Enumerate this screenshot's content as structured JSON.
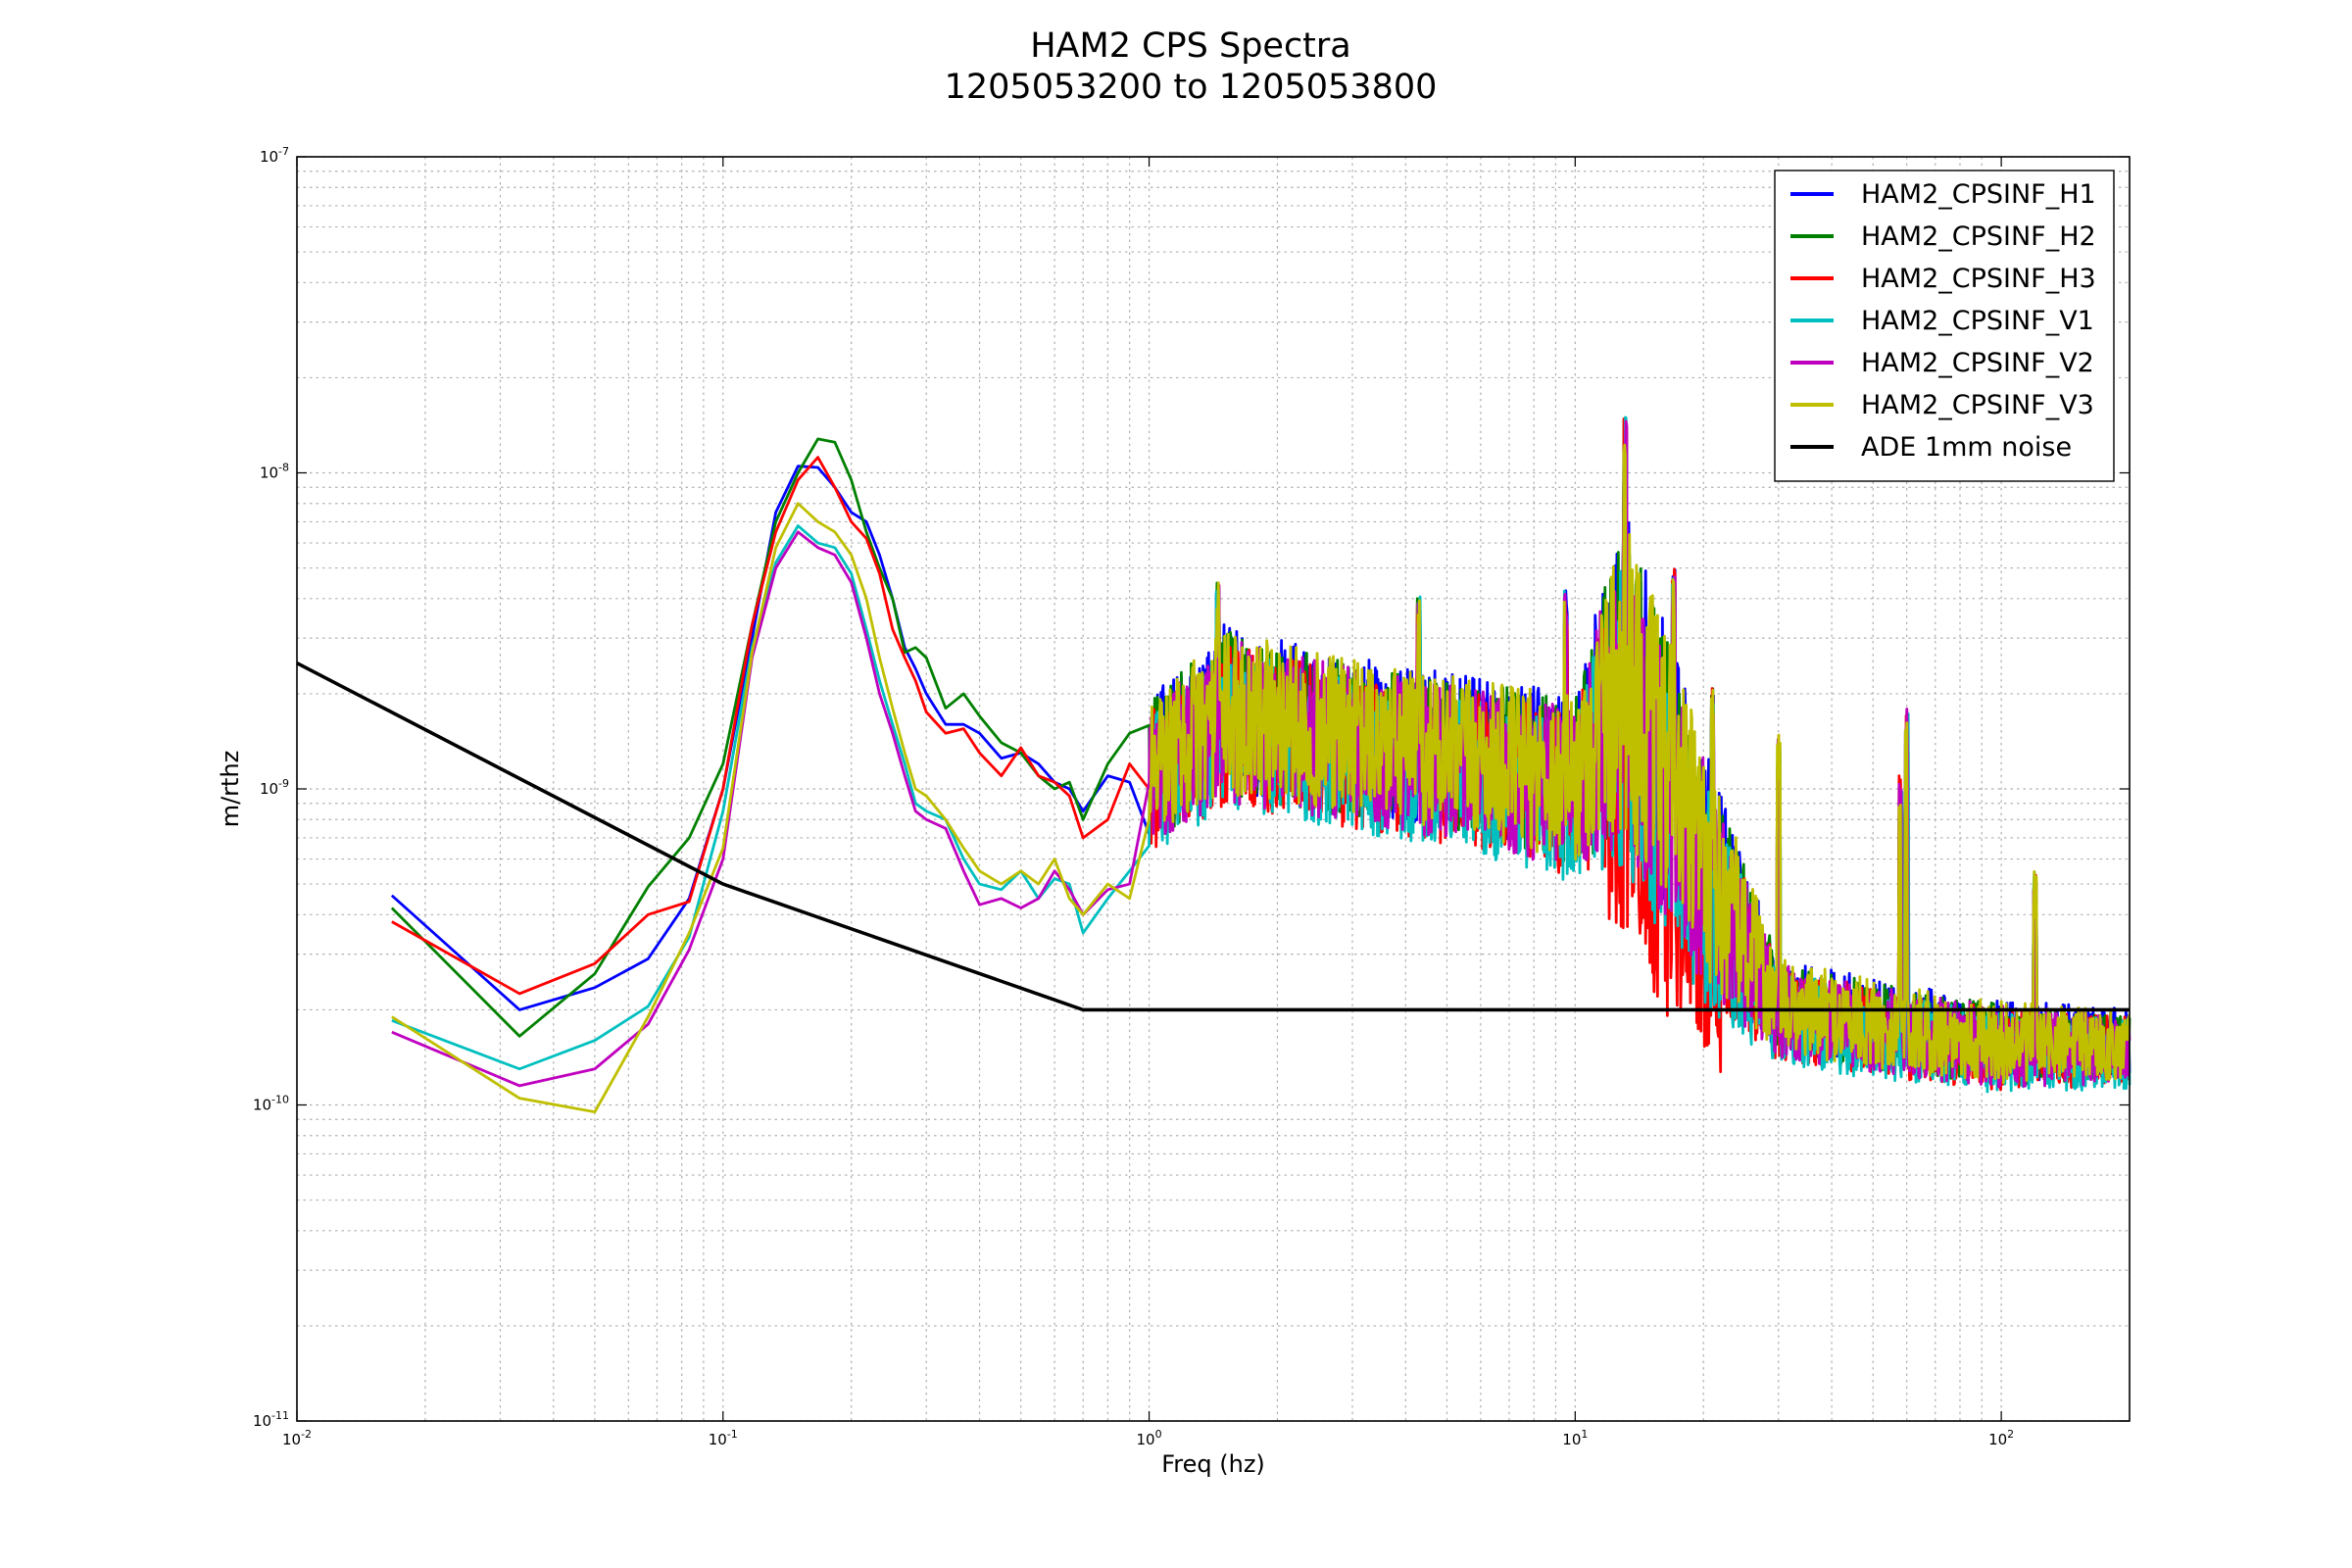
{
  "chart_data": {
    "type": "line",
    "title": "HAM2 CPS Spectra",
    "subtitle": "1205053200 to 1205053800",
    "xlabel": "Freq (hz)",
    "ylabel": "m/rthz",
    "xscale": "log",
    "yscale": "log",
    "xlim": [
      0.01,
      200
    ],
    "ylim": [
      1e-11,
      1e-07
    ],
    "grid": true,
    "legend_position": "top-right",
    "x_ticks": [
      {
        "base": "10",
        "exp": "-2",
        "value": 0.01
      },
      {
        "base": "10",
        "exp": "-1",
        "value": 0.1
      },
      {
        "base": "10",
        "exp": "0",
        "value": 1
      },
      {
        "base": "10",
        "exp": "1",
        "value": 10
      },
      {
        "base": "10",
        "exp": "2",
        "value": 100
      }
    ],
    "y_ticks": [
      {
        "base": "10",
        "exp": "-11",
        "value": 1e-11
      },
      {
        "base": "10",
        "exp": "-10",
        "value": 1e-10
      },
      {
        "base": "10",
        "exp": "-9",
        "value": 1e-09
      },
      {
        "base": "10",
        "exp": "-8",
        "value": 1e-08
      },
      {
        "base": "10",
        "exp": "-7",
        "value": 1e-07
      }
    ],
    "series": [
      {
        "name": "HAM2_CPSINF_H1",
        "color": "#0000ff",
        "points": [
          [
            0.0167,
            4.6e-10
          ],
          [
            0.0333,
            2e-10
          ],
          [
            0.05,
            2.35e-10
          ],
          [
            0.0667,
            2.9e-10
          ],
          [
            0.0833,
            4.5e-10
          ],
          [
            0.1,
            1e-09
          ],
          [
            0.117,
            3e-09
          ],
          [
            0.133,
            7.5e-09
          ],
          [
            0.15,
            1.05e-08
          ],
          [
            0.167,
            1.04e-08
          ],
          [
            0.183,
            9e-09
          ],
          [
            0.2,
            7.5e-09
          ],
          [
            0.217,
            7e-09
          ],
          [
            0.233,
            5.5e-09
          ],
          [
            0.25,
            4e-09
          ],
          [
            0.267,
            2.8e-09
          ],
          [
            0.283,
            2.4e-09
          ],
          [
            0.3,
            2e-09
          ],
          [
            0.333,
            1.6e-09
          ],
          [
            0.367,
            1.6e-09
          ],
          [
            0.4,
            1.5e-09
          ],
          [
            0.45,
            1.25e-09
          ],
          [
            0.5,
            1.3e-09
          ],
          [
            0.55,
            1.2e-09
          ],
          [
            0.6,
            1.05e-09
          ],
          [
            0.65,
            1e-09
          ],
          [
            0.7,
            8.5e-10
          ],
          [
            0.8,
            1.1e-09
          ],
          [
            0.9,
            1.05e-09
          ]
        ]
      },
      {
        "name": "HAM2_CPSINF_H2",
        "color": "#008000",
        "points": [
          [
            0.0167,
            4.2e-10
          ],
          [
            0.0333,
            1.65e-10
          ],
          [
            0.05,
            2.6e-10
          ],
          [
            0.0667,
            4.9e-10
          ],
          [
            0.0833,
            7e-10
          ],
          [
            0.1,
            1.2e-09
          ],
          [
            0.117,
            3.3e-09
          ],
          [
            0.133,
            7e-09
          ],
          [
            0.15,
            1e-08
          ],
          [
            0.167,
            1.28e-08
          ],
          [
            0.183,
            1.25e-08
          ],
          [
            0.2,
            9.5e-09
          ],
          [
            0.217,
            6.5e-09
          ],
          [
            0.233,
            5e-09
          ],
          [
            0.25,
            4e-09
          ],
          [
            0.267,
            2.7e-09
          ],
          [
            0.283,
            2.8e-09
          ],
          [
            0.3,
            2.6e-09
          ],
          [
            0.333,
            1.8e-09
          ],
          [
            0.367,
            2e-09
          ],
          [
            0.4,
            1.7e-09
          ],
          [
            0.45,
            1.4e-09
          ],
          [
            0.5,
            1.3e-09
          ],
          [
            0.55,
            1.1e-09
          ],
          [
            0.6,
            1e-09
          ],
          [
            0.65,
            1.05e-09
          ],
          [
            0.7,
            8e-10
          ],
          [
            0.8,
            1.2e-09
          ],
          [
            0.9,
            1.5e-09
          ]
        ]
      },
      {
        "name": "HAM2_CPSINF_H3",
        "color": "#ff0000",
        "points": [
          [
            0.0167,
            3.8e-10
          ],
          [
            0.0333,
            2.25e-10
          ],
          [
            0.05,
            2.8e-10
          ],
          [
            0.0667,
            4e-10
          ],
          [
            0.0833,
            4.4e-10
          ],
          [
            0.1,
            1e-09
          ],
          [
            0.117,
            3.3e-09
          ],
          [
            0.133,
            6.5e-09
          ],
          [
            0.15,
            9.5e-09
          ],
          [
            0.167,
            1.12e-08
          ],
          [
            0.183,
            9e-09
          ],
          [
            0.2,
            7e-09
          ],
          [
            0.217,
            6.2e-09
          ],
          [
            0.233,
            4.8e-09
          ],
          [
            0.25,
            3.2e-09
          ],
          [
            0.267,
            2.6e-09
          ],
          [
            0.283,
            2.2e-09
          ],
          [
            0.3,
            1.75e-09
          ],
          [
            0.333,
            1.5e-09
          ],
          [
            0.367,
            1.55e-09
          ],
          [
            0.4,
            1.3e-09
          ],
          [
            0.45,
            1.1e-09
          ],
          [
            0.5,
            1.35e-09
          ],
          [
            0.55,
            1.1e-09
          ],
          [
            0.6,
            1.05e-09
          ],
          [
            0.65,
            9.5e-10
          ],
          [
            0.7,
            7e-10
          ],
          [
            0.8,
            8e-10
          ],
          [
            0.9,
            1.2e-09
          ]
        ]
      },
      {
        "name": "HAM2_CPSINF_V1",
        "color": "#00bfbf",
        "points": [
          [
            0.0167,
            1.85e-10
          ],
          [
            0.0333,
            1.3e-10
          ],
          [
            0.05,
            1.6e-10
          ],
          [
            0.0667,
            2.05e-10
          ],
          [
            0.0833,
            3.4e-10
          ],
          [
            0.1,
            8.5e-10
          ],
          [
            0.117,
            2.8e-09
          ],
          [
            0.133,
            5.2e-09
          ],
          [
            0.15,
            6.8e-09
          ],
          [
            0.167,
            6e-09
          ],
          [
            0.183,
            5.8e-09
          ],
          [
            0.2,
            4.8e-09
          ],
          [
            0.217,
            3.2e-09
          ],
          [
            0.233,
            2.2e-09
          ],
          [
            0.25,
            1.6e-09
          ],
          [
            0.267,
            1.2e-09
          ],
          [
            0.283,
            9e-10
          ],
          [
            0.3,
            8.5e-10
          ],
          [
            0.333,
            8e-10
          ],
          [
            0.367,
            6e-10
          ],
          [
            0.4,
            5e-10
          ],
          [
            0.45,
            4.8e-10
          ],
          [
            0.5,
            5.5e-10
          ],
          [
            0.55,
            4.5e-10
          ],
          [
            0.6,
            5.2e-10
          ],
          [
            0.65,
            5e-10
          ],
          [
            0.7,
            3.5e-10
          ],
          [
            0.8,
            4.5e-10
          ],
          [
            0.9,
            5.5e-10
          ]
        ]
      },
      {
        "name": "HAM2_CPSINF_V2",
        "color": "#bf00bf",
        "points": [
          [
            0.0167,
            1.7e-10
          ],
          [
            0.0333,
            1.15e-10
          ],
          [
            0.05,
            1.3e-10
          ],
          [
            0.0667,
            1.8e-10
          ],
          [
            0.0833,
            3.1e-10
          ],
          [
            0.1,
            6e-10
          ],
          [
            0.117,
            2.6e-09
          ],
          [
            0.133,
            5e-09
          ],
          [
            0.15,
            6.5e-09
          ],
          [
            0.167,
            5.8e-09
          ],
          [
            0.183,
            5.5e-09
          ],
          [
            0.2,
            4.5e-09
          ],
          [
            0.217,
            3e-09
          ],
          [
            0.233,
            2e-09
          ],
          [
            0.25,
            1.5e-09
          ],
          [
            0.267,
            1.1e-09
          ],
          [
            0.283,
            8.5e-10
          ],
          [
            0.3,
            8e-10
          ],
          [
            0.333,
            7.5e-10
          ],
          [
            0.367,
            5.5e-10
          ],
          [
            0.4,
            4.3e-10
          ],
          [
            0.45,
            4.5e-10
          ],
          [
            0.5,
            4.2e-10
          ],
          [
            0.55,
            4.5e-10
          ],
          [
            0.6,
            5.5e-10
          ],
          [
            0.65,
            4.8e-10
          ],
          [
            0.7,
            4e-10
          ],
          [
            0.8,
            4.8e-10
          ],
          [
            0.9,
            5e-10
          ]
        ]
      },
      {
        "name": "HAM2_CPSINF_V3",
        "color": "#bfbf00",
        "points": [
          [
            0.0167,
            1.9e-10
          ],
          [
            0.0333,
            1.05e-10
          ],
          [
            0.05,
            9.5e-11
          ],
          [
            0.0667,
            1.9e-10
          ],
          [
            0.0833,
            3.5e-10
          ],
          [
            0.1,
            6.5e-10
          ],
          [
            0.117,
            2.7e-09
          ],
          [
            0.133,
            5.8e-09
          ],
          [
            0.15,
            8e-09
          ],
          [
            0.167,
            7e-09
          ],
          [
            0.183,
            6.5e-09
          ],
          [
            0.2,
            5.5e-09
          ],
          [
            0.217,
            4e-09
          ],
          [
            0.233,
            2.6e-09
          ],
          [
            0.25,
            1.8e-09
          ],
          [
            0.267,
            1.3e-09
          ],
          [
            0.283,
            1e-09
          ],
          [
            0.3,
            9.5e-10
          ],
          [
            0.333,
            8e-10
          ],
          [
            0.367,
            6.5e-10
          ],
          [
            0.4,
            5.5e-10
          ],
          [
            0.45,
            5e-10
          ],
          [
            0.5,
            5.5e-10
          ],
          [
            0.55,
            5e-10
          ],
          [
            0.6,
            6e-10
          ],
          [
            0.65,
            4.5e-10
          ],
          [
            0.7,
            4e-10
          ],
          [
            0.8,
            5e-10
          ],
          [
            0.9,
            4.5e-10
          ]
        ]
      },
      {
        "name": "ADE 1mm noise",
        "color": "#000000",
        "points": [
          [
            0.01,
            2.5e-09
          ],
          [
            0.1,
            5e-10
          ],
          [
            0.7,
            2e-10
          ],
          [
            200,
            2e-10
          ]
        ]
      }
    ],
    "high_frequency_band": {
      "x_range": [
        1.0,
        200
      ],
      "ylim_envelope": [
        {
          "x": 1.0,
          "low": 4e-10,
          "high": 2.5e-09
        },
        {
          "x": 1.5,
          "low": 5e-10,
          "high": 4.5e-09
        },
        {
          "x": 3.0,
          "low": 4.5e-10,
          "high": 3.5e-09
        },
        {
          "x": 6.0,
          "low": 3.8e-10,
          "high": 3e-09
        },
        {
          "x": 10,
          "low": 3e-10,
          "high": 2.8e-09
        },
        {
          "x": 13,
          "low": 2e-10,
          "high": 1.5e-08
        },
        {
          "x": 20,
          "low": 1e-10,
          "high": 2.2e-09
        },
        {
          "x": 30,
          "low": 1e-10,
          "high": 3.5e-10
        },
        {
          "x": 60,
          "low": 9e-11,
          "high": 2.8e-10
        },
        {
          "x": 100,
          "low": 8.5e-11,
          "high": 2.5e-10
        },
        {
          "x": 200,
          "low": 9e-11,
          "high": 2.3e-10
        }
      ],
      "peaks": [
        {
          "x": 1.45,
          "y": 4.5e-09
        },
        {
          "x": 4.3,
          "y": 4.2e-09
        },
        {
          "x": 9.5,
          "y": 4.3e-09
        },
        {
          "x": 13.1,
          "y": 1.5e-08
        },
        {
          "x": 17,
          "y": 5e-09
        },
        {
          "x": 21,
          "y": 2.1e-09
        },
        {
          "x": 30,
          "y": 1.5e-09
        },
        {
          "x": 58,
          "y": 1.1e-09
        },
        {
          "x": 60,
          "y": 1.8e-09
        },
        {
          "x": 120,
          "y": 5.5e-10
        }
      ]
    }
  }
}
